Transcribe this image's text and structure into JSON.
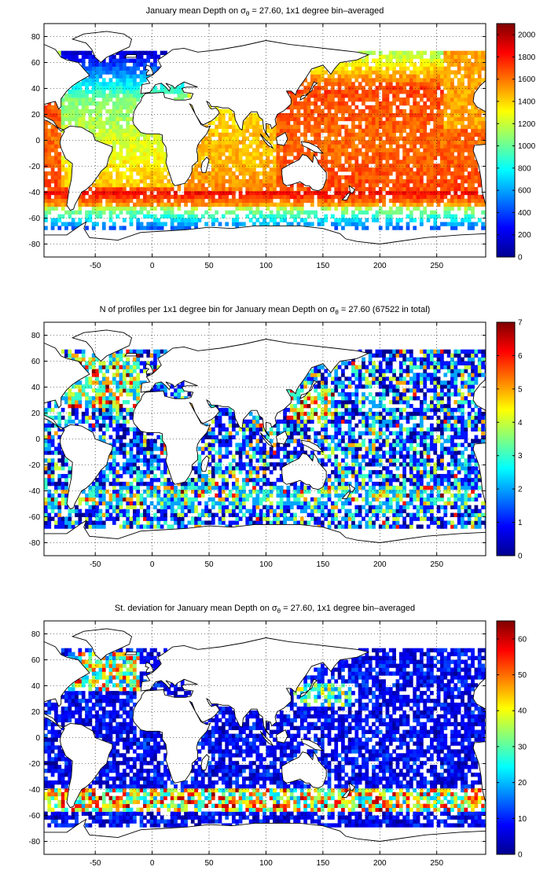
{
  "palette": [
    "#00008f",
    "#0000ff",
    "#0080ff",
    "#00ffff",
    "#80ff80",
    "#ffff00",
    "#ff8000",
    "#ff0000",
    "#800000"
  ],
  "chart_data": [
    {
      "type": "heatmap",
      "title": {
        "pre": "January mean Depth on σ",
        "sub": "θ",
        "post": " = 27.60, 1x1 degree bin–averaged"
      },
      "xlim": [
        -95,
        293
      ],
      "ylim": [
        -90,
        90
      ],
      "xticks": [
        -50,
        0,
        50,
        100,
        150,
        200,
        250
      ],
      "yticks": [
        -80,
        -60,
        -40,
        -20,
        0,
        20,
        40,
        60,
        80
      ],
      "colorbar": {
        "min": 0,
        "max": 2100,
        "ticks": [
          0,
          200,
          400,
          600,
          800,
          1000,
          1200,
          1400,
          1600,
          1800,
          2000
        ]
      },
      "grid": true,
      "field": "mean_depth"
    },
    {
      "type": "heatmap",
      "title": {
        "pre": "N of profiles per 1x1 degree bin for January mean Depth on σ",
        "sub": "θ",
        "post": " = 27.60 (67522 in total)"
      },
      "xlim": [
        -95,
        293
      ],
      "ylim": [
        -90,
        90
      ],
      "xticks": [
        -50,
        0,
        50,
        100,
        150,
        200,
        250
      ],
      "yticks": [
        -80,
        -60,
        -40,
        -20,
        0,
        20,
        40,
        60,
        80
      ],
      "colorbar": {
        "min": 0,
        "max": 7,
        "ticks": [
          0,
          1,
          2,
          3,
          4,
          5,
          6,
          7
        ]
      },
      "grid": true,
      "field": "profile_count"
    },
    {
      "type": "heatmap",
      "title": {
        "pre": "St. deviation for January mean Depth on σ",
        "sub": "θ",
        "post": " = 27.60, 1x1 degree bin–averaged"
      },
      "xlim": [
        -95,
        293
      ],
      "ylim": [
        -90,
        90
      ],
      "xticks": [
        -50,
        0,
        50,
        100,
        150,
        200,
        250
      ],
      "yticks": [
        -80,
        -60,
        -40,
        -20,
        0,
        20,
        40,
        60,
        80
      ],
      "colorbar": {
        "min": 0,
        "max": 65,
        "ticks": [
          0,
          10,
          20,
          30,
          40,
          50,
          60
        ]
      },
      "grid": true,
      "field": "std_depth"
    }
  ]
}
